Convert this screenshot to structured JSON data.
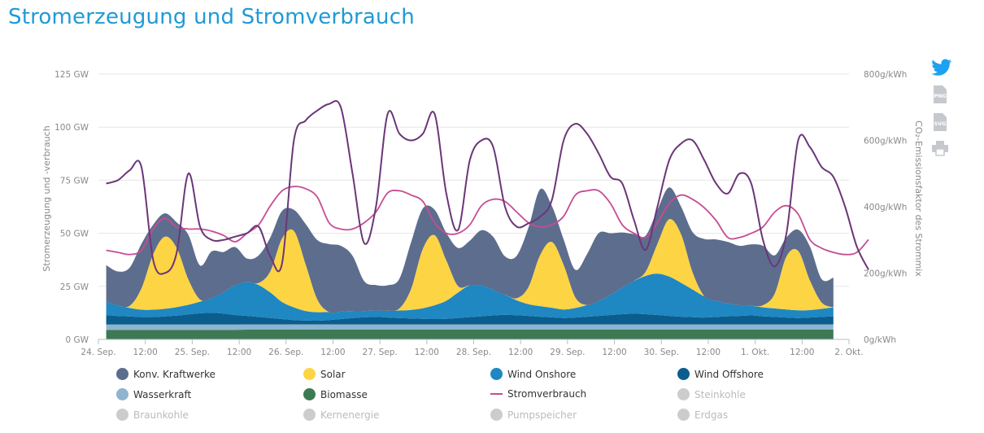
{
  "page": {
    "title": "Stromerzeugung und Stromverbrauch"
  },
  "chart_data": {
    "type": "area",
    "ylabel_left": "Stromerzeugung und -verbrauch",
    "ylabel_right": "CO₂-Emissionsfaktor des Strommix",
    "left_ticks": [
      "0 GW",
      "25 GW",
      "50 GW",
      "75 GW",
      "100 GW",
      "125 GW"
    ],
    "right_ticks": [
      "0g/kWh",
      "200g/kWh",
      "400g/kWh",
      "600g/kWh",
      "800g/kWh"
    ],
    "ylim_left": [
      0,
      125
    ],
    "ylim_right": [
      0,
      800
    ],
    "xlim": [
      0,
      192
    ],
    "x_ticks": [
      {
        "x": 0,
        "label": "24. Sep."
      },
      {
        "x": 12,
        "label": "12:00"
      },
      {
        "x": 24,
        "label": "25. Sep."
      },
      {
        "x": 36,
        "label": "12:00"
      },
      {
        "x": 48,
        "label": "26. Sep."
      },
      {
        "x": 60,
        "label": "12:00"
      },
      {
        "x": 72,
        "label": "27. Sep."
      },
      {
        "x": 84,
        "label": "12:00"
      },
      {
        "x": 96,
        "label": "28. Sep."
      },
      {
        "x": 108,
        "label": "12:00"
      },
      {
        "x": 120,
        "label": "29. Sep."
      },
      {
        "x": 132,
        "label": "12:00"
      },
      {
        "x": 144,
        "label": "30. Sep."
      },
      {
        "x": 156,
        "label": "12:00"
      },
      {
        "x": 168,
        "label": "1. Okt."
      },
      {
        "x": 180,
        "label": "12:00"
      },
      {
        "x": 192,
        "label": "2. Okt."
      }
    ],
    "x_start": 2,
    "x_step": 3,
    "series": [
      {
        "name": "Biomasse",
        "color": "#3d7a54",
        "axis": "left",
        "values": [
          4.5,
          4.5,
          4.5,
          4.5,
          4.5,
          4.5,
          4.5,
          4.5,
          4.5,
          4.5,
          4.5,
          4.5,
          4.6,
          4.6,
          4.6,
          4.6,
          4.6,
          4.6,
          4.6,
          4.6,
          4.6,
          4.6,
          4.6,
          4.6,
          4.6,
          4.6,
          4.6,
          4.6,
          4.6,
          4.6,
          4.6,
          4.6,
          4.6,
          4.6,
          4.6,
          4.6,
          4.6,
          4.6,
          4.6,
          4.6,
          4.6,
          4.6,
          4.6,
          4.6,
          4.6,
          4.6,
          4.6,
          4.6,
          4.6,
          4.6,
          4.6,
          4.6,
          4.6,
          4.6,
          4.6,
          4.6,
          4.6,
          4.6,
          4.6,
          4.6,
          4.6,
          4.6,
          4.6
        ]
      },
      {
        "name": "Wasserkraft",
        "color": "#8fb4cf",
        "axis": "left",
        "values": [
          2.5,
          2.5,
          2.5,
          2.5,
          2.5,
          2.5,
          2.5,
          2.5,
          2.5,
          2.5,
          2.5,
          2.5,
          2.5,
          2.5,
          2.5,
          2.5,
          2.5,
          2.5,
          2.5,
          2.5,
          2.5,
          2.5,
          2.5,
          2.5,
          2.5,
          2.5,
          2.5,
          2.5,
          2.5,
          2.5,
          2.5,
          2.5,
          2.5,
          2.5,
          2.5,
          2.5,
          2.5,
          2.5,
          2.5,
          2.5,
          2.5,
          2.5,
          2.5,
          2.5,
          2.5,
          2.5,
          2.5,
          2.5,
          2.5,
          2.5,
          2.5,
          2.5,
          2.5,
          2.5,
          2.5,
          2.5,
          2.5,
          2.5,
          2.5,
          2.5,
          2.5,
          2.5,
          2.5
        ]
      },
      {
        "name": "Wind Offshore",
        "color": "#0b5d8d",
        "axis": "left",
        "values": [
          4.5,
          4,
          3.8,
          3.5,
          3.5,
          3.8,
          4.2,
          4.8,
          5.3,
          5.5,
          5.2,
          4.5,
          4,
          3.5,
          3,
          2.5,
          2,
          1.8,
          1.7,
          2,
          2.5,
          3,
          3.3,
          3.5,
          3.2,
          3,
          2.8,
          2.6,
          2.5,
          2.6,
          3,
          3.4,
          3.8,
          4.2,
          4.5,
          4.3,
          4,
          3.6,
          3.3,
          3,
          3.2,
          3.6,
          4,
          4.4,
          4.8,
          5,
          4.8,
          4.4,
          4,
          3.6,
          3.4,
          3.2,
          3.5,
          3.8,
          4,
          4.2,
          3.8,
          3.5,
          3.2,
          3,
          3.2,
          3.5,
          3.8
        ]
      },
      {
        "name": "Wind Onshore",
        "color": "#1f87c2",
        "axis": "left",
        "values": [
          6.5,
          5,
          4,
          3.5,
          3.5,
          3.6,
          4,
          4.5,
          5.5,
          7,
          10,
          14,
          16,
          15,
          12,
          8,
          6,
          4.5,
          4,
          3.8,
          3.5,
          3.3,
          3,
          3,
          3.2,
          3.5,
          4,
          5,
          6.5,
          8.5,
          12,
          15,
          14.5,
          12,
          9.5,
          7,
          5.5,
          5,
          4.5,
          4,
          4.5,
          5.5,
          7,
          9.5,
          12.5,
          15.5,
          18,
          19.5,
          18.5,
          16,
          13,
          10,
          7.5,
          6,
          5,
          4.5,
          4.2,
          4,
          3.8,
          3.6,
          3.5,
          3.8,
          4.2
        ]
      },
      {
        "name": "Solar",
        "color": "#fdd444",
        "axis": "left",
        "values": [
          0,
          0,
          1,
          10,
          26,
          34,
          28,
          12,
          1,
          0,
          0,
          0,
          0,
          1,
          10,
          30,
          36,
          22,
          6,
          0,
          0,
          0,
          0,
          0,
          0,
          1,
          10,
          28,
          33,
          19,
          3,
          0,
          0,
          0,
          0,
          1,
          8,
          24,
          31,
          21,
          5,
          0,
          0,
          0,
          0,
          0,
          2,
          14,
          27,
          23,
          8,
          0,
          0,
          0,
          0,
          0,
          1,
          7,
          25,
          28,
          14,
          3,
          0
        ]
      },
      {
        "name": "Konv. Kraftwerke",
        "color": "#5d6d8e",
        "axis": "left",
        "values": [
          17,
          16,
          18,
          21,
          14,
          11,
          12,
          21,
          16,
          22,
          19,
          18,
          11,
          13,
          16,
          13,
          10,
          19,
          28,
          32,
          31,
          26,
          14,
          12,
          12,
          14,
          22,
          19,
          12,
          13,
          18,
          21,
          26,
          25,
          18,
          20,
          28,
          31,
          17,
          12,
          13,
          24,
          32,
          29,
          26,
          22,
          17,
          16,
          15,
          13,
          19,
          27,
          29,
          29,
          28,
          29,
          28,
          18,
          9,
          10,
          16,
          11,
          14
        ]
      },
      {
        "name": "Stromverbrauch",
        "color": "#c54d93",
        "axis": "left",
        "line": true,
        "values": [
          42,
          41,
          40,
          42,
          52,
          57,
          53,
          52,
          52,
          51,
          49,
          46,
          50,
          54,
          63,
          70,
          72,
          71,
          67,
          55,
          52,
          52,
          55,
          60,
          69,
          70,
          68,
          65,
          55,
          50,
          50,
          54,
          63,
          66,
          65,
          60,
          55,
          53,
          54,
          58,
          68,
          70,
          70,
          64,
          54,
          50,
          48,
          55,
          64,
          68,
          66,
          62,
          56,
          48,
          48,
          50,
          53,
          60,
          63,
          59,
          47,
          43,
          41,
          40,
          41,
          47
        ]
      },
      {
        "name": "CO₂-Emissionsfaktor",
        "color": "#6b3678",
        "axis": "right",
        "line": true,
        "values": [
          470,
          480,
          510,
          520,
          240,
          200,
          260,
          500,
          340,
          300,
          300,
          310,
          320,
          340,
          250,
          230,
          600,
          660,
          690,
          710,
          700,
          500,
          290,
          400,
          680,
          620,
          600,
          620,
          680,
          440,
          330,
          540,
          600,
          580,
          400,
          340,
          350,
          370,
          420,
          600,
          650,
          620,
          560,
          490,
          470,
          360,
          270,
          400,
          540,
          590,
          600,
          540,
          470,
          440,
          500,
          470,
          300,
          220,
          320,
          600,
          580,
          520,
          490,
          400,
          280,
          210
        ]
      }
    ],
    "legend": [
      {
        "name": "Konv. Kraftwerke",
        "color": "#5d6d8e",
        "active": true,
        "shape": "dot"
      },
      {
        "name": "Solar",
        "color": "#fdd444",
        "active": true,
        "shape": "dot"
      },
      {
        "name": "Wind Onshore",
        "color": "#1f87c2",
        "active": true,
        "shape": "dot"
      },
      {
        "name": "Wind Offshore",
        "color": "#0b5d8d",
        "active": true,
        "shape": "dot"
      },
      {
        "name": "Wasserkraft",
        "color": "#8fb4cf",
        "active": true,
        "shape": "dot"
      },
      {
        "name": "Biomasse",
        "color": "#3d7a54",
        "active": true,
        "shape": "dot"
      },
      {
        "name": "Stromverbrauch",
        "color": "#c54d93",
        "active": true,
        "shape": "line"
      },
      {
        "name": "Steinkohle",
        "color": "#cccccc",
        "active": false,
        "shape": "dot"
      },
      {
        "name": "Braunkohle",
        "color": "#cccccc",
        "active": false,
        "shape": "dot"
      },
      {
        "name": "Kernenergie",
        "color": "#cccccc",
        "active": false,
        "shape": "dot"
      },
      {
        "name": "Pumpspeicher",
        "color": "#cccccc",
        "active": false,
        "shape": "dot"
      },
      {
        "name": "Erdgas",
        "color": "#cccccc",
        "active": false,
        "shape": "dot"
      }
    ],
    "grid": true,
    "legend_placement": "bottom"
  },
  "icons": {
    "twitter": "twitter-icon",
    "png": "png-export-icon",
    "svg": "svg-export-icon",
    "print": "print-icon",
    "png_label": "PNG",
    "svg_label": "SVG",
    "accent": "#1da1f2",
    "muted": "#c5c9ce"
  }
}
